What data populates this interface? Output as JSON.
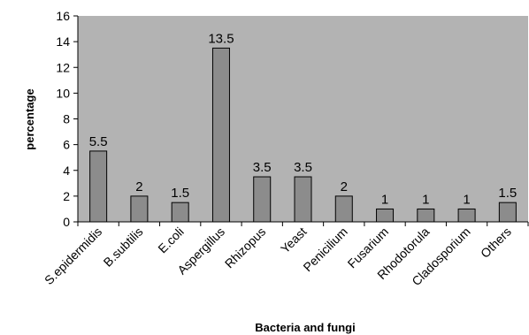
{
  "chart_data": {
    "type": "bar",
    "title": "",
    "xlabel": "Bacteria and fungi",
    "ylabel": "percentage",
    "ylim": [
      0,
      16
    ],
    "yticks": [
      0,
      2,
      4,
      6,
      8,
      10,
      12,
      14,
      16
    ],
    "grid": false,
    "legend": "none",
    "categories": [
      "S.epidermidis",
      "B.subtilis",
      "E.coli",
      "Aspergillus",
      "Rhizopus",
      "Yeast",
      "Penicilium",
      "Fusarium",
      "Rhodotorula",
      "Cladosporium",
      "Others"
    ],
    "values": [
      5.5,
      2,
      1.5,
      13.5,
      3.5,
      3.5,
      2,
      1,
      1,
      1,
      1.5
    ],
    "data_labels": [
      "5.5",
      "2",
      "1.5",
      "13.5",
      "3.5",
      "3.5",
      "2",
      "1",
      "1",
      "1",
      "1.5"
    ],
    "colors": {
      "plot_background": "#b3b3b3",
      "bar_fill": "#8c8c8c",
      "bar_stroke": "#000000",
      "axis": "#000000"
    }
  }
}
